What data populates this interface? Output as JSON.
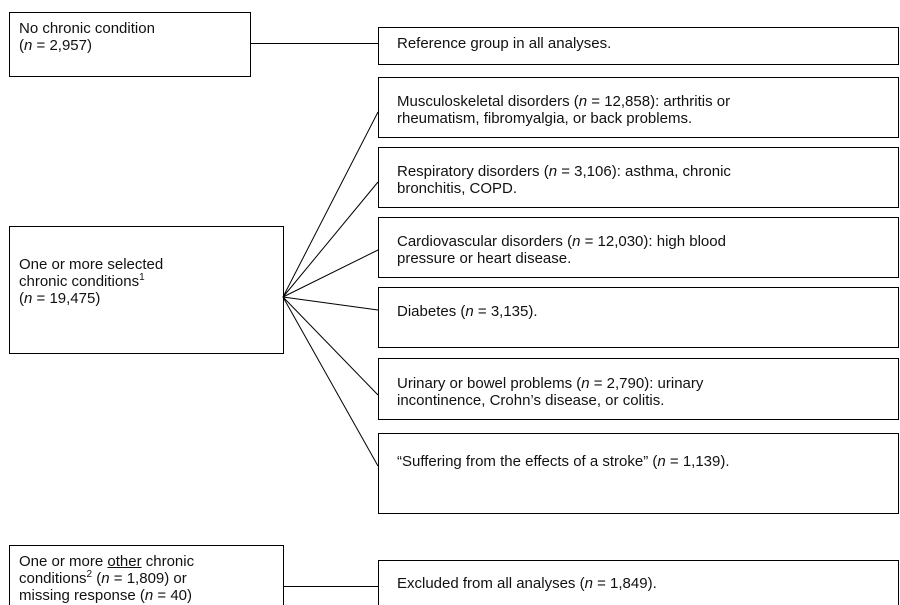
{
  "left": [
    {
      "parts": [
        "No chronic condition",
        "(",
        "n",
        " = 2,957)"
      ]
    },
    {
      "parts": [
        "One or more selected",
        "chronic conditions",
        "1",
        "(",
        "n",
        " = 19,475)"
      ]
    },
    {
      "parts": [
        "One or more ",
        "other",
        " chronic",
        "conditions",
        "2",
        " (",
        "n",
        " = 1,809) or",
        "missing response (",
        "n",
        " = 40)"
      ]
    }
  ],
  "right": [
    {
      "parts": [
        "Reference group in all analyses."
      ]
    },
    {
      "parts": [
        "Musculoskeletal disorders (",
        "n",
        " = 12,858): arthritis or",
        "rheumatism, fibromyalgia, or back problems."
      ]
    },
    {
      "parts": [
        "Respiratory disorders (",
        "n",
        " = 3,106): asthma, chronic",
        "bronchitis, COPD."
      ]
    },
    {
      "parts": [
        "Cardiovascular disorders (",
        "n",
        " = 12,030): high blood",
        "pressure or heart disease."
      ]
    },
    {
      "parts": [
        "Diabetes (",
        "n",
        " = 3,135)."
      ]
    },
    {
      "parts": [
        "Urinary or bowel problems (",
        "n",
        " = 2,790): urinary",
        "incontinence, Crohn’s disease, or colitis."
      ]
    },
    {
      "parts": [
        "“Suffering from the effects of a stroke” (",
        "n",
        " = 1,139)."
      ]
    },
    {
      "parts": [
        "Excluded from all analyses (",
        "n",
        " = 1,849)."
      ]
    }
  ]
}
